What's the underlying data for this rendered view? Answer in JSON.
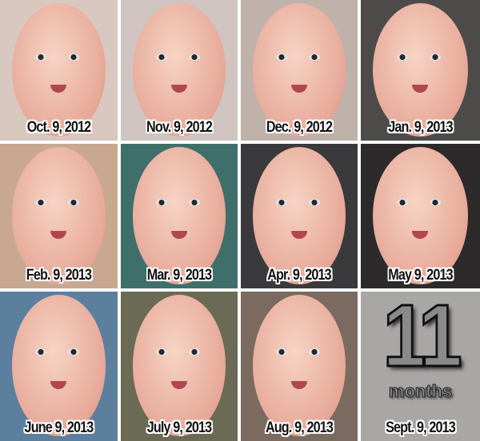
{
  "photos": [
    {
      "label": "Oct. 9, 2012",
      "bg": "#d9c8c0"
    },
    {
      "label": "Nov. 9, 2012",
      "bg": "#cfc4bf"
    },
    {
      "label": "Dec. 9, 2012",
      "bg": "#bfb2aa"
    },
    {
      "label": "Jan. 9, 2013",
      "bg": "#4d4b4a"
    },
    {
      "label": "Feb. 9, 2013",
      "bg": "#c8a890"
    },
    {
      "label": "Mar. 9, 2013",
      "bg": "#3f6f6a"
    },
    {
      "label": "Apr. 9, 2013",
      "bg": "#3a3a3c"
    },
    {
      "label": "May 9, 2013",
      "bg": "#2c2a2a"
    },
    {
      "label": "June  9, 2013",
      "bg": "#5d7f9e"
    },
    {
      "label": "July 9, 2013",
      "bg": "#6b6a55"
    },
    {
      "label": "Aug. 9, 2013",
      "bg": "#7a6a60"
    }
  ],
  "final_panel": {
    "number": "11",
    "unit": "months",
    "label": "Sept. 9, 2013",
    "bg": "#a9a6a6"
  }
}
